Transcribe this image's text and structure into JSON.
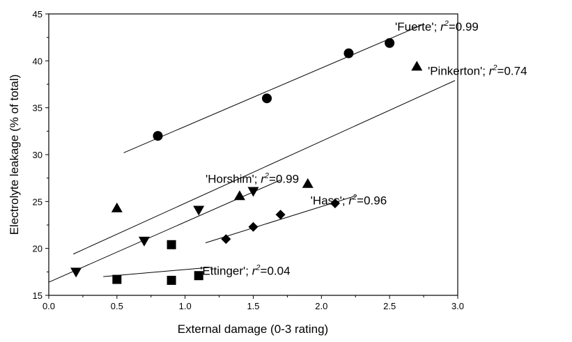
{
  "chart_data": {
    "type": "scatter",
    "xlabel": "External damage (0-3 rating)",
    "ylabel": "Electrolyte leakage (% of total)",
    "xlim": [
      0,
      3
    ],
    "ylim": [
      15,
      45
    ],
    "xticks": [
      "0.0",
      "0.5",
      "1.0",
      "1.5",
      "2.0",
      "2.5",
      "3.0"
    ],
    "yticks": [
      "15",
      "20",
      "25",
      "30",
      "35",
      "40",
      "45"
    ],
    "grid": false,
    "legend": "none",
    "series": [
      {
        "name": "'Fuerte'",
        "r2": "0.99",
        "marker": "circle",
        "points": [
          [
            0.8,
            32.0
          ],
          [
            1.6,
            36.0
          ],
          [
            2.2,
            40.8
          ],
          [
            2.5,
            41.9
          ]
        ],
        "fit": [
          [
            0.55,
            30.2
          ],
          [
            2.75,
            43.9
          ]
        ]
      },
      {
        "name": "'Pinkerton'",
        "r2": "0.74",
        "marker": "triangle-up",
        "points": [
          [
            0.5,
            24.3
          ],
          [
            1.4,
            25.6
          ],
          [
            1.9,
            26.9
          ],
          [
            2.7,
            39.4
          ]
        ],
        "fit": [
          [
            0.18,
            19.4
          ],
          [
            2.98,
            37.9
          ]
        ]
      },
      {
        "name": "'Horshim'",
        "r2": "0.99",
        "marker": "triangle-down",
        "points": [
          [
            0.2,
            17.5
          ],
          [
            0.7,
            20.8
          ],
          [
            1.1,
            24.1
          ],
          [
            1.5,
            26.1
          ]
        ],
        "fit": [
          [
            0.0,
            16.4
          ],
          [
            1.7,
            27.3
          ]
        ]
      },
      {
        "name": "'Hass'",
        "r2": "0.96",
        "marker": "diamond",
        "points": [
          [
            1.3,
            21.0
          ],
          [
            1.5,
            22.3
          ],
          [
            1.7,
            23.6
          ],
          [
            2.1,
            24.8
          ]
        ],
        "fit": [
          [
            1.15,
            20.6
          ],
          [
            2.25,
            25.6
          ]
        ]
      },
      {
        "name": "'Ettinger'",
        "r2": "0.04",
        "marker": "square",
        "points": [
          [
            0.5,
            16.7
          ],
          [
            0.9,
            20.4
          ],
          [
            0.9,
            16.6
          ],
          [
            1.1,
            17.1
          ]
        ],
        "fit": [
          [
            0.4,
            17.0
          ],
          [
            1.2,
            18.0
          ]
        ]
      }
    ]
  }
}
